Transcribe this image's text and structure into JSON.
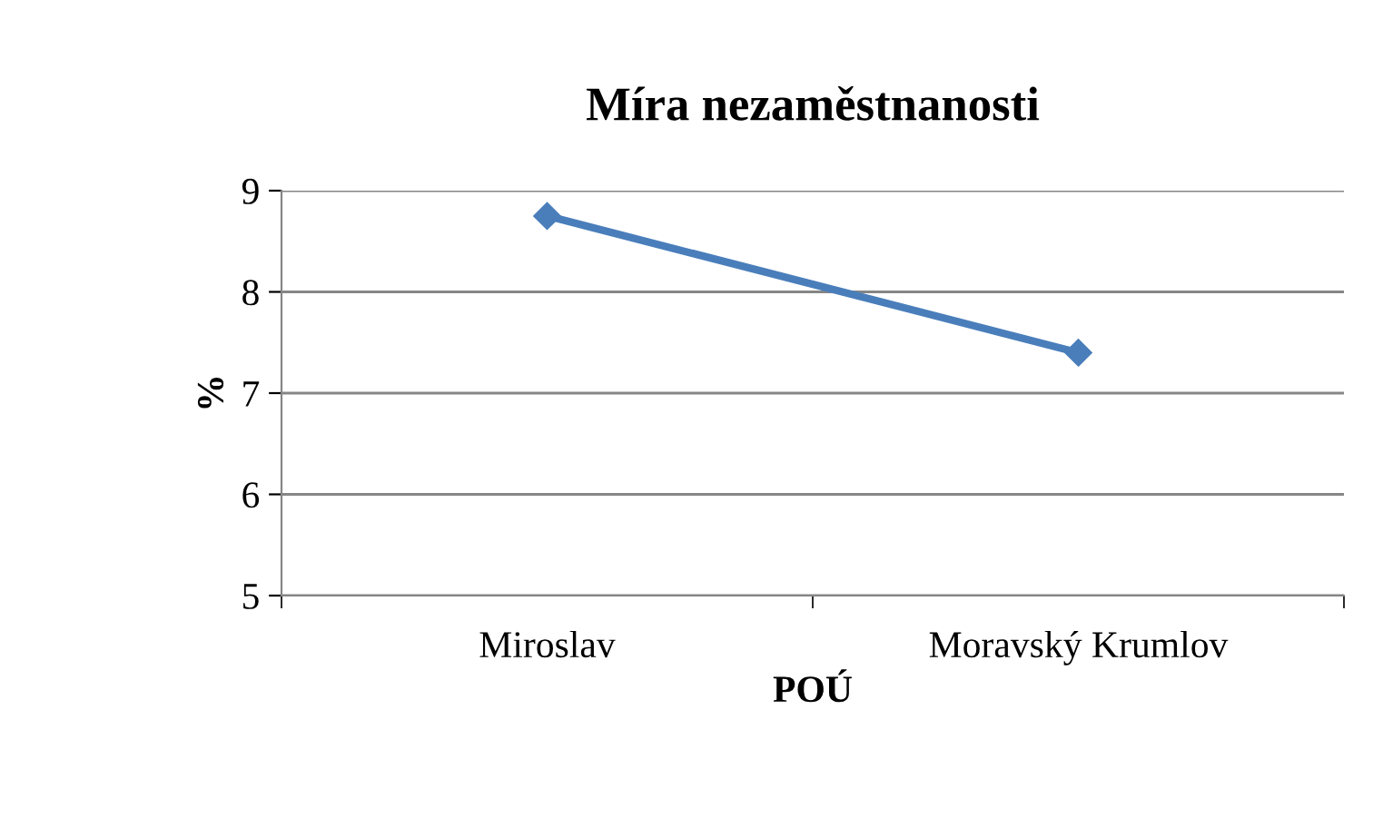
{
  "chart_data": {
    "type": "line",
    "title": "Míra nezaměstnanosti",
    "xlabel": "POÚ",
    "ylabel": "%",
    "categories": [
      "Miroslav",
      "Moravský Krumlov"
    ],
    "series": [
      {
        "color": "#4a7ebb",
        "values": [
          8.75,
          7.4
        ]
      }
    ],
    "ylim": [
      5,
      9
    ],
    "yticks": [
      5,
      6,
      7,
      8,
      9
    ],
    "grid": "y",
    "marker": "diamond",
    "line_style": "solid",
    "legend": false
  }
}
